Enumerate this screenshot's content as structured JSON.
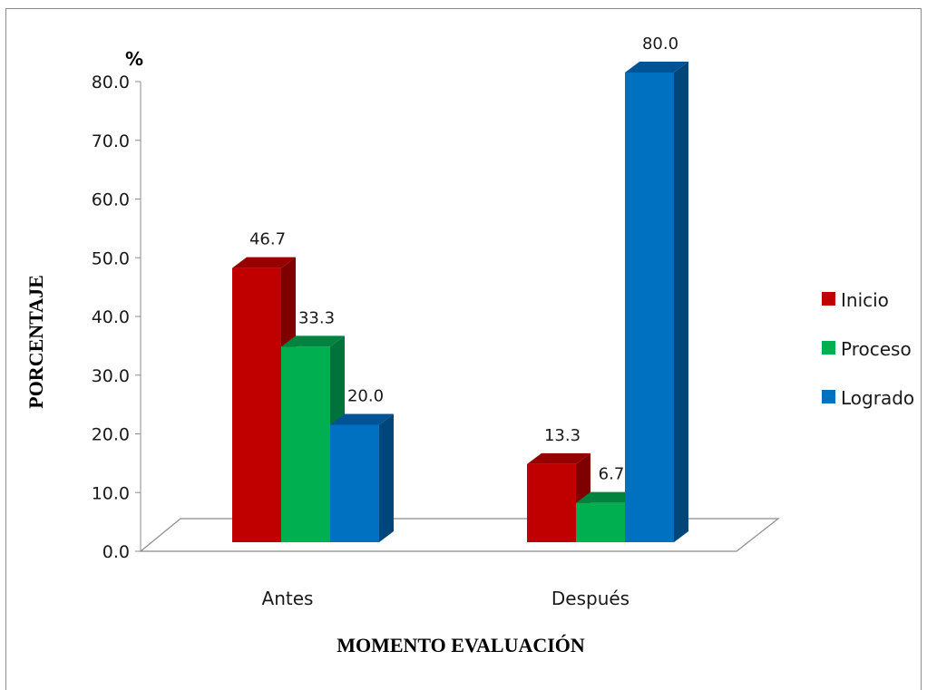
{
  "chart_data": {
    "type": "bar",
    "categories": [
      "Antes",
      "Después"
    ],
    "series": [
      {
        "name": "Inicio",
        "values": [
          46.7,
          13.3
        ],
        "color": "#c00000",
        "side": "#7f0000",
        "top": "#960000"
      },
      {
        "name": "Proceso",
        "values": [
          33.3,
          6.7
        ],
        "color": "#00b050",
        "side": "#00733a",
        "top": "#00833f"
      },
      {
        "name": "Logrado",
        "values": [
          20.0,
          80.0
        ],
        "color": "#0070c0",
        "side": "#00467a",
        "top": "#005394"
      }
    ],
    "ylim": [
      0,
      80
    ],
    "yticks": [
      "0.0",
      "10.0",
      "20.0",
      "30.0",
      "40.0",
      "50.0",
      "60.0",
      "70.0",
      "80.0"
    ],
    "data_labels": [
      [
        "46.7",
        "13.3"
      ],
      [
        "33.3",
        "6.7"
      ],
      [
        "20.0",
        "80.0"
      ]
    ],
    "unit_label": "%",
    "xlabel": "MOMENTO EVALUACIÓN",
    "ylabel": "PORCENTAJE",
    "legend_position": "right",
    "grid": false,
    "style": "3d-clustered-column"
  }
}
